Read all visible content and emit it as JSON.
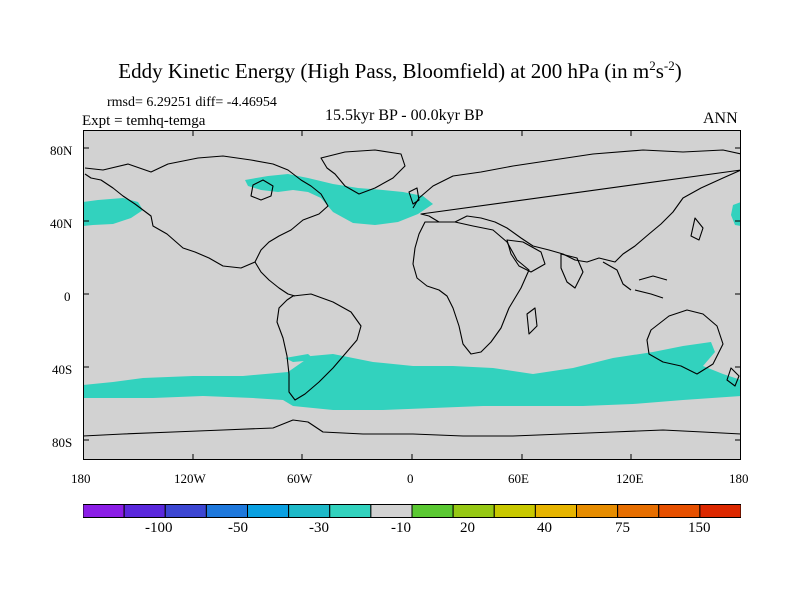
{
  "title": {
    "main": "Eddy Kinetic Energy (High Pass, Bloomfield) at 200 hPa (in m",
    "sup1": "2",
    "mid": "s",
    "sup2": "-2",
    "end": ")"
  },
  "stats": "rmsd= 6.29251 diff= -4.46954",
  "expt": "Expt = temhq-temga",
  "center_label": "15.5kyr BP - 00.0kyr BP",
  "season": "ANN",
  "y_ticks": [
    "80N",
    "40N",
    "0",
    "40S",
    "80S"
  ],
  "x_ticks": [
    "180",
    "120W",
    "60W",
    "0",
    "60E",
    "120E",
    "180"
  ],
  "colorbar": {
    "colors": [
      "#8b1ee6",
      "#5a28dc",
      "#3c46d2",
      "#1e78dc",
      "#0aa0e1",
      "#1eb9c8",
      "#32d2be",
      "#d2d2d2",
      "#5ac832",
      "#96c814",
      "#c8c800",
      "#e6b400",
      "#e68c00",
      "#e66e00",
      "#e65000",
      "#dc2800"
    ],
    "labels": [
      "-100",
      "-50",
      "-30",
      "-10",
      "20",
      "40",
      "75",
      "150"
    ]
  },
  "land_color": "#d2d2d2",
  "anomaly_color": "#32d2be"
}
